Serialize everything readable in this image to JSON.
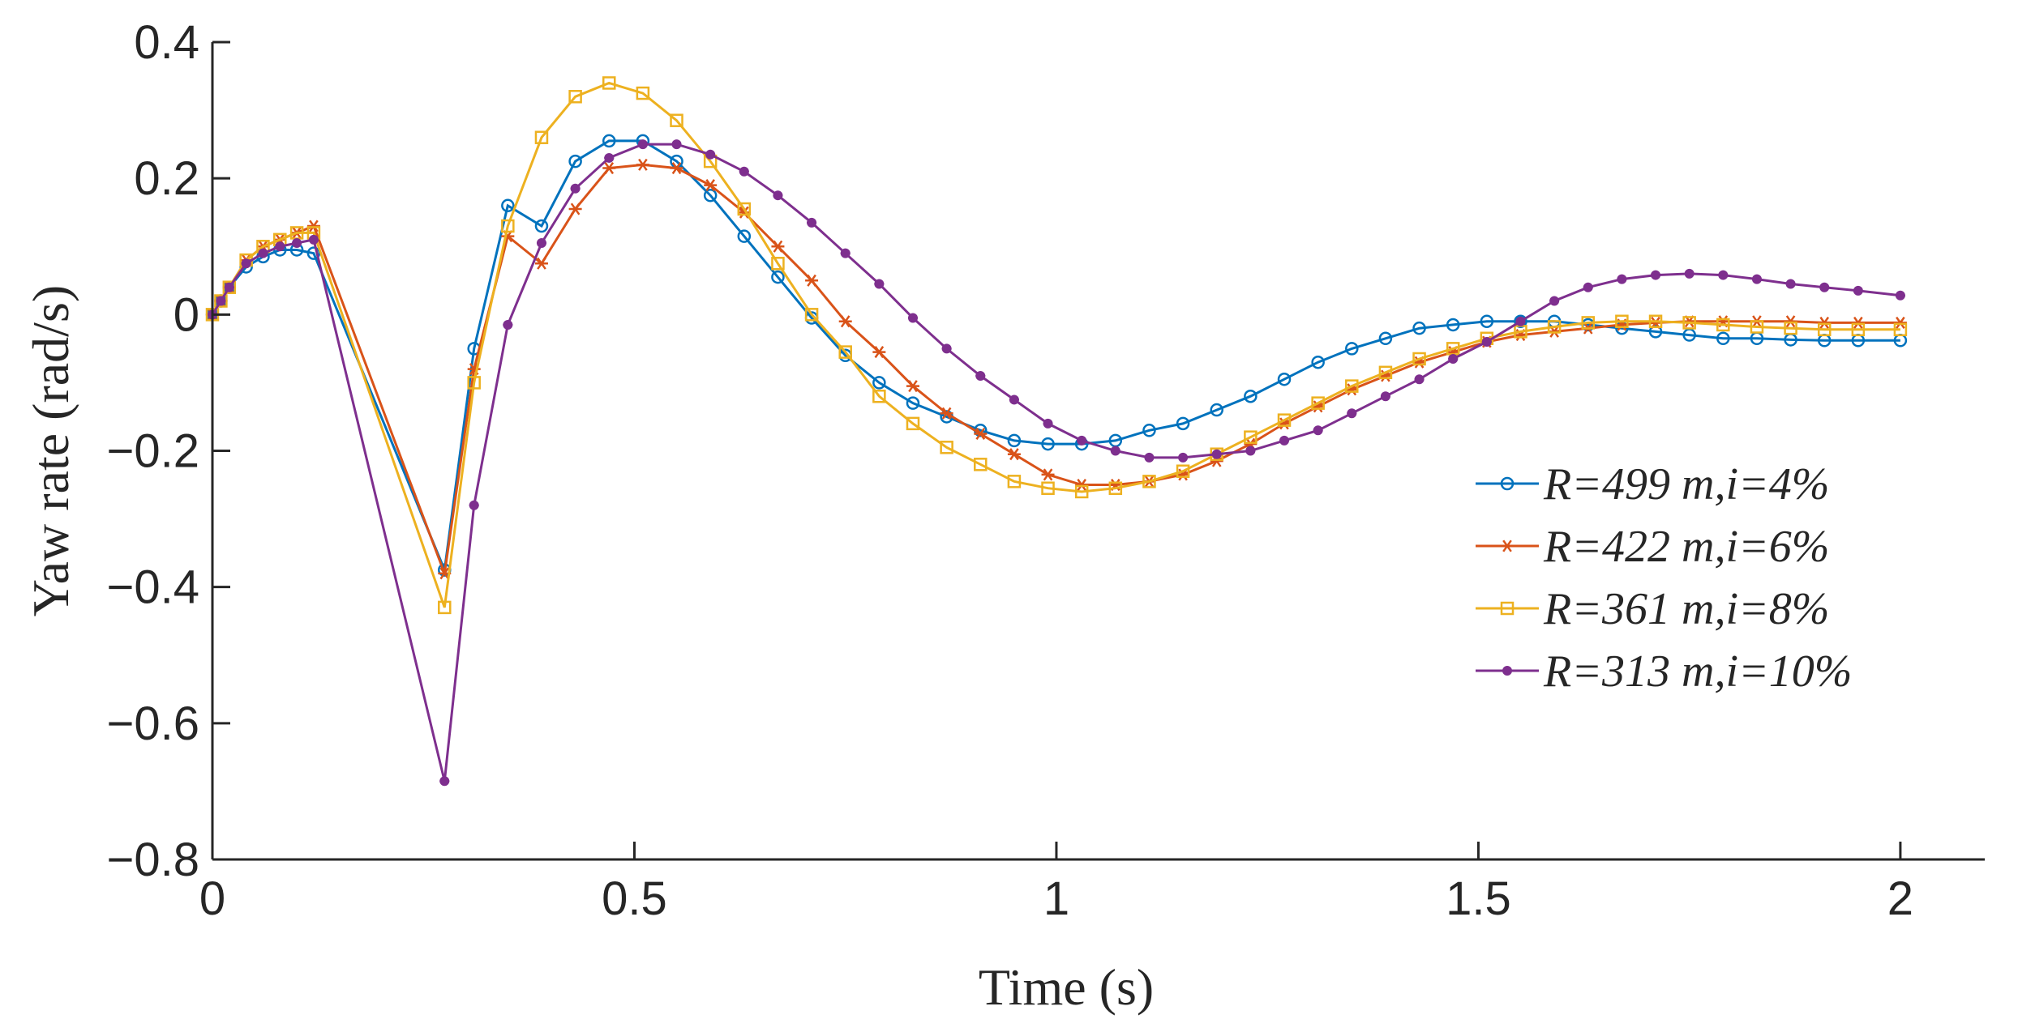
{
  "chart_data": {
    "type": "line",
    "title": "",
    "xlabel": "Time (s)",
    "ylabel": "Yaw rate (rad/s)",
    "xlim": [
      0,
      2.1
    ],
    "ylim": [
      -0.8,
      0.4
    ],
    "xticks": [
      0,
      0.5,
      1,
      1.5,
      2
    ],
    "xtick_labels": [
      "0",
      "0.5",
      "1",
      "1.5",
      "2"
    ],
    "yticks": [
      0.4,
      0.2,
      0,
      -0.2,
      -0.4,
      -0.6,
      -0.8
    ],
    "ytick_labels": [
      "0.4",
      "0.2",
      "0",
      "−0.2",
      "−0.4",
      "−0.6",
      "−0.8"
    ],
    "legend_position": "center-right",
    "series": [
      {
        "name": "R=499 m,i=4%",
        "color": "#0072BD",
        "marker": "circle",
        "x": [
          0,
          0.01,
          0.02,
          0.04,
          0.06,
          0.08,
          0.1,
          0.12,
          0.275,
          0.31,
          0.35,
          0.39,
          0.43,
          0.47,
          0.51,
          0.55,
          0.59,
          0.63,
          0.67,
          0.71,
          0.75,
          0.79,
          0.83,
          0.87,
          0.91,
          0.95,
          0.99,
          1.03,
          1.07,
          1.11,
          1.15,
          1.19,
          1.23,
          1.27,
          1.31,
          1.35,
          1.39,
          1.43,
          1.47,
          1.51,
          1.55,
          1.59,
          1.63,
          1.67,
          1.71,
          1.75,
          1.79,
          1.83,
          1.87,
          1.91,
          1.95,
          2.0
        ],
        "y": [
          0,
          0.02,
          0.04,
          0.07,
          0.085,
          0.095,
          0.095,
          0.09,
          -0.375,
          -0.05,
          0.16,
          0.13,
          0.225,
          0.255,
          0.255,
          0.225,
          0.175,
          0.115,
          0.055,
          -0.005,
          -0.06,
          -0.1,
          -0.13,
          -0.15,
          -0.17,
          -0.185,
          -0.19,
          -0.19,
          -0.185,
          -0.17,
          -0.16,
          -0.14,
          -0.12,
          -0.095,
          -0.07,
          -0.05,
          -0.035,
          -0.02,
          -0.015,
          -0.01,
          -0.01,
          -0.01,
          -0.015,
          -0.02,
          -0.025,
          -0.03,
          -0.035,
          -0.035,
          -0.037,
          -0.038,
          -0.038,
          -0.038
        ]
      },
      {
        "name": "R=422 m,i=6%",
        "color": "#D95319",
        "marker": "asterisk",
        "x": [
          0,
          0.01,
          0.02,
          0.04,
          0.06,
          0.08,
          0.1,
          0.12,
          0.275,
          0.31,
          0.35,
          0.39,
          0.43,
          0.47,
          0.51,
          0.55,
          0.59,
          0.63,
          0.67,
          0.71,
          0.75,
          0.79,
          0.83,
          0.87,
          0.91,
          0.95,
          0.99,
          1.03,
          1.07,
          1.11,
          1.15,
          1.19,
          1.23,
          1.27,
          1.31,
          1.35,
          1.39,
          1.43,
          1.47,
          1.51,
          1.55,
          1.59,
          1.63,
          1.67,
          1.71,
          1.75,
          1.79,
          1.83,
          1.87,
          1.91,
          1.95,
          2.0
        ],
        "y": [
          0,
          0.02,
          0.04,
          0.08,
          0.1,
          0.11,
          0.12,
          0.13,
          -0.38,
          -0.08,
          0.115,
          0.075,
          0.155,
          0.215,
          0.22,
          0.215,
          0.19,
          0.15,
          0.1,
          0.05,
          -0.01,
          -0.055,
          -0.105,
          -0.145,
          -0.175,
          -0.205,
          -0.235,
          -0.25,
          -0.25,
          -0.245,
          -0.235,
          -0.215,
          -0.19,
          -0.16,
          -0.135,
          -0.11,
          -0.09,
          -0.07,
          -0.055,
          -0.04,
          -0.03,
          -0.025,
          -0.02,
          -0.015,
          -0.012,
          -0.01,
          -0.01,
          -0.01,
          -0.01,
          -0.012,
          -0.012,
          -0.012
        ]
      },
      {
        "name": "R=361 m,i=8%",
        "color": "#EDB120",
        "marker": "square",
        "x": [
          0,
          0.01,
          0.02,
          0.04,
          0.06,
          0.08,
          0.1,
          0.12,
          0.275,
          0.31,
          0.35,
          0.39,
          0.43,
          0.47,
          0.51,
          0.55,
          0.59,
          0.63,
          0.67,
          0.71,
          0.75,
          0.79,
          0.83,
          0.87,
          0.91,
          0.95,
          0.99,
          1.03,
          1.07,
          1.11,
          1.15,
          1.19,
          1.23,
          1.27,
          1.31,
          1.35,
          1.39,
          1.43,
          1.47,
          1.51,
          1.55,
          1.59,
          1.63,
          1.67,
          1.71,
          1.75,
          1.79,
          1.83,
          1.87,
          1.91,
          1.95,
          2.0
        ],
        "y": [
          0,
          0.02,
          0.04,
          0.08,
          0.1,
          0.11,
          0.12,
          0.12,
          -0.43,
          -0.1,
          0.13,
          0.26,
          0.32,
          0.34,
          0.325,
          0.285,
          0.225,
          0.155,
          0.075,
          0.0,
          -0.055,
          -0.12,
          -0.16,
          -0.195,
          -0.22,
          -0.245,
          -0.255,
          -0.26,
          -0.255,
          -0.245,
          -0.23,
          -0.205,
          -0.18,
          -0.155,
          -0.13,
          -0.105,
          -0.085,
          -0.065,
          -0.05,
          -0.035,
          -0.025,
          -0.018,
          -0.012,
          -0.01,
          -0.01,
          -0.012,
          -0.015,
          -0.018,
          -0.02,
          -0.022,
          -0.022,
          -0.022
        ]
      },
      {
        "name": "R=313 m,i=10%",
        "color": "#7E2F8E",
        "marker": "point",
        "x": [
          0,
          0.01,
          0.02,
          0.04,
          0.06,
          0.08,
          0.1,
          0.12,
          0.275,
          0.31,
          0.35,
          0.39,
          0.43,
          0.47,
          0.51,
          0.55,
          0.59,
          0.63,
          0.67,
          0.71,
          0.75,
          0.79,
          0.83,
          0.87,
          0.91,
          0.95,
          0.99,
          1.03,
          1.07,
          1.11,
          1.15,
          1.19,
          1.23,
          1.27,
          1.31,
          1.35,
          1.39,
          1.43,
          1.47,
          1.51,
          1.55,
          1.59,
          1.63,
          1.67,
          1.71,
          1.75,
          1.79,
          1.83,
          1.87,
          1.91,
          1.95,
          2.0
        ],
        "y": [
          0,
          0.02,
          0.04,
          0.075,
          0.09,
          0.1,
          0.105,
          0.11,
          -0.685,
          -0.28,
          -0.015,
          0.105,
          0.185,
          0.23,
          0.25,
          0.25,
          0.235,
          0.21,
          0.175,
          0.135,
          0.09,
          0.045,
          -0.005,
          -0.05,
          -0.09,
          -0.125,
          -0.16,
          -0.185,
          -0.2,
          -0.21,
          -0.21,
          -0.205,
          -0.2,
          -0.185,
          -0.17,
          -0.145,
          -0.12,
          -0.095,
          -0.065,
          -0.04,
          -0.01,
          0.02,
          0.04,
          0.052,
          0.058,
          0.06,
          0.058,
          0.052,
          0.045,
          0.04,
          0.035,
          0.028
        ]
      }
    ]
  }
}
